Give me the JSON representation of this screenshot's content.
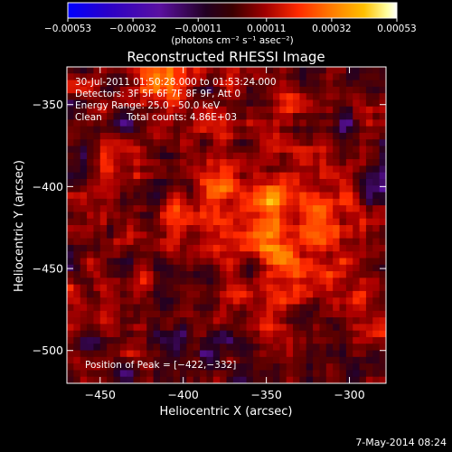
{
  "chart_data": {
    "type": "heatmap",
    "title": "Reconstructed RHESSI Image",
    "xlabel": "Heliocentric X (arcsec)",
    "ylabel": "Heliocentric Y (arcsec)",
    "xlim": [
      -470,
      -278
    ],
    "ylim": [
      -520,
      -327
    ],
    "x_ticks": [
      -450,
      -400,
      -350,
      -300
    ],
    "y_ticks": [
      -350,
      -400,
      -450,
      -500
    ],
    "x_tick_labels": [
      "−450",
      "−400",
      "−350",
      "−300"
    ],
    "y_tick_labels": [
      "−350",
      "−400",
      "−450",
      "−500"
    ],
    "colorbar": {
      "range": [
        -0.00053,
        0.00053
      ],
      "tick_values": [
        -0.00053,
        -0.00032,
        -0.00011,
        0.00011,
        0.00032,
        0.00053
      ],
      "tick_labels": [
        "−0.00053",
        "−0.00032",
        "−0.00011",
        "0.00011",
        "0.00032",
        "0.00053"
      ],
      "units_label": "(photons cm⁻² s⁻¹ asec⁻²)",
      "colormap": [
        "#0000ff",
        "#2a00c8",
        "#5a10a0",
        "#220022",
        "#5a0000",
        "#b00000",
        "#ff2a00",
        "#ff7a00",
        "#ffc000",
        "#ffffa0",
        "#ffffff"
      ]
    },
    "peak": {
      "x": -422,
      "y": -332
    },
    "grid": false
  },
  "annotations": {
    "time_range": "30-Jul-2011 01:50:28.000 to 01:53:24.000",
    "detectors": "Detectors: 3F 5F 6F 7F 8F 9F, Att 0",
    "energy_range": "Energy Range: 25.0 - 50.0 keV",
    "method": "Clean",
    "total_counts": "Total counts: 4.86E+03",
    "peak_position": "Position of Peak = [−422,−332]"
  },
  "footer": {
    "date": "7-May-2014 08:24"
  }
}
